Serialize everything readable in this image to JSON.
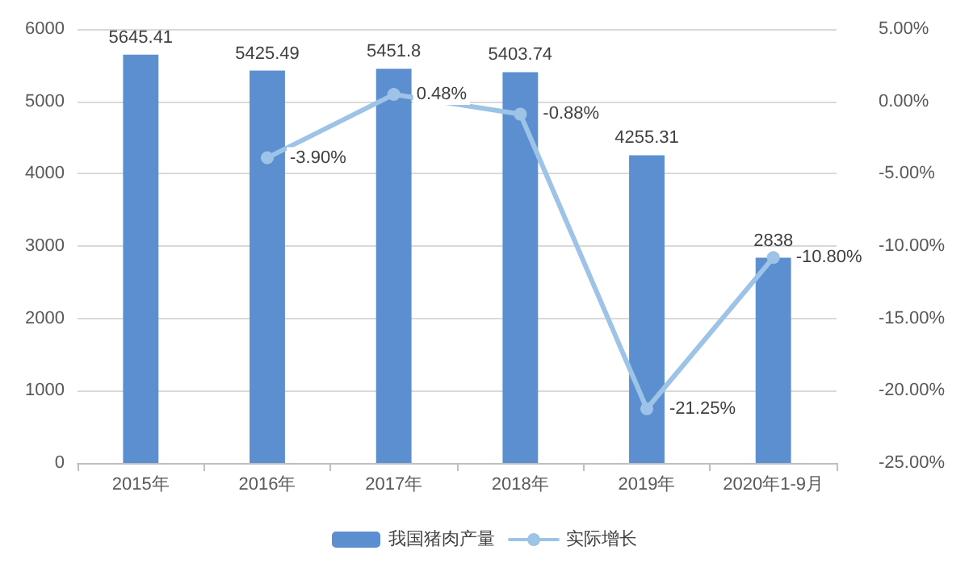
{
  "chart_data": {
    "type": "bar",
    "categories": [
      "2015年",
      "2016年",
      "2017年",
      "2018年",
      "2019年",
      "2020年1-9月"
    ],
    "series": [
      {
        "name": "我国猪肉产量",
        "color": "#5b8fd0",
        "values": [
          5645.41,
          5425.49,
          5451.8,
          5403.74,
          4255.31,
          2838
        ],
        "value_labels": [
          "5645.41",
          "5425.49",
          "5451.8",
          "5403.74",
          "4255.31",
          "2838"
        ]
      },
      {
        "name": "实际增长",
        "type": "line",
        "axis": "y2",
        "color": "#9dc3e6",
        "values": [
          null,
          -3.9,
          0.48,
          -0.88,
          -21.25,
          -10.8
        ],
        "value_labels": [
          null,
          "-3.90%",
          "0.48%",
          "-0.88%",
          "-21.25%",
          "-10.80%"
        ]
      }
    ],
    "ylim": [
      0,
      6000
    ],
    "yticks": [
      0,
      1000,
      2000,
      3000,
      4000,
      5000,
      6000
    ],
    "y2lim": [
      -25,
      5
    ],
    "y2ticks": [
      {
        "value": 5,
        "label": "5.00%"
      },
      {
        "value": 0,
        "label": "0.00%"
      },
      {
        "value": -5,
        "label": "-5.00%"
      },
      {
        "value": -10,
        "label": "-10.00%"
      },
      {
        "value": -15,
        "label": "-15.00%"
      },
      {
        "value": -20,
        "label": "-20.00%"
      },
      {
        "value": -25,
        "label": "-25.00%"
      }
    ],
    "grid": "y",
    "legend": "bottom",
    "marker": "circle",
    "line_style": "solid"
  }
}
